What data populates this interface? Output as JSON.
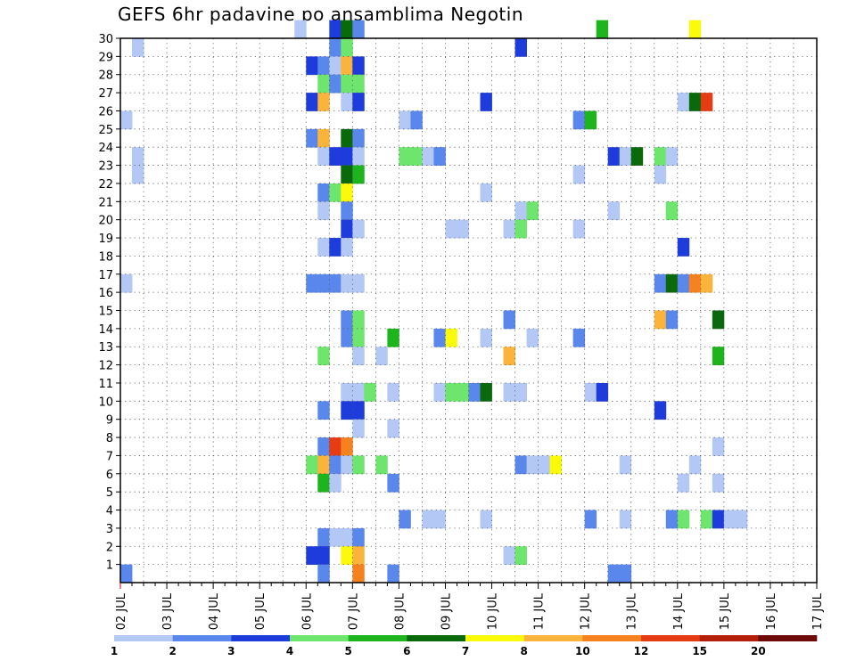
{
  "chart_data": {
    "type": "heatmap",
    "title": "GEFS 6hr padavine po ansamblima Negotin",
    "xlabel": "",
    "ylabel": "",
    "x_tick_labels": [
      "02 JUL",
      "03 JUL",
      "04 JUL",
      "05 JUL",
      "06 JUL",
      "07 JUL",
      "08 JUL",
      "09 JUL",
      "10 JUL",
      "11 JUL",
      "12 JUL",
      "13 JUL",
      "14 JUL",
      "15 JUL",
      "16 JUL",
      "17 JUL"
    ],
    "y_tick_labels": [
      "1",
      "2",
      "3",
      "4",
      "5",
      "6",
      "7",
      "8",
      "9",
      "10",
      "11",
      "12",
      "13",
      "14",
      "15",
      "16",
      "17",
      "18",
      "19",
      "20",
      "21",
      "22",
      "23",
      "24",
      "25",
      "26",
      "27",
      "28",
      "29",
      "30"
    ],
    "x_range_days": [
      0,
      15
    ],
    "y_range_members": [
      0,
      30
    ],
    "grid": true,
    "legend_position": "bottom",
    "colorbar": {
      "labels": [
        "1",
        "2",
        "3",
        "4",
        "5",
        "6",
        "7",
        "8",
        "10",
        "12",
        "15",
        "20"
      ],
      "colors": [
        "#b4c8f5",
        "#5a87eb",
        "#1e3cdc",
        "#6ee66e",
        "#1eb41e",
        "#0a690a",
        "#fafa0a",
        "#fab43c",
        "#f5821e",
        "#e63c14",
        "#b41e0a",
        "#6e0a0a"
      ]
    },
    "cells": [
      {
        "m": 30,
        "s": [
          [
            15,
            1
          ],
          [
            18,
            3
          ],
          [
            19,
            6
          ],
          [
            20,
            2
          ],
          [
            41,
            5
          ],
          [
            49,
            7
          ]
        ]
      },
      {
        "m": 29,
        "s": [
          [
            1,
            1
          ],
          [
            18,
            2
          ],
          [
            19,
            4
          ],
          [
            34,
            3
          ]
        ]
      },
      {
        "m": 28,
        "s": [
          [
            16,
            3
          ],
          [
            17,
            2
          ],
          [
            18,
            1
          ],
          [
            19,
            8
          ],
          [
            20,
            3
          ]
        ]
      },
      {
        "m": 27,
        "s": [
          [
            17,
            4
          ],
          [
            18,
            2
          ],
          [
            19,
            4
          ],
          [
            20,
            4
          ]
        ]
      },
      {
        "m": 26,
        "s": [
          [
            16,
            3
          ],
          [
            17,
            8
          ],
          [
            19,
            1
          ],
          [
            20,
            3
          ],
          [
            31,
            3
          ],
          [
            48,
            1
          ],
          [
            49,
            6
          ],
          [
            50,
            10
          ]
        ]
      },
      {
        "m": 25,
        "s": [
          [
            0,
            1
          ],
          [
            24,
            1
          ],
          [
            25,
            2
          ],
          [
            39,
            2
          ],
          [
            40,
            5
          ]
        ]
      },
      {
        "m": 24,
        "s": [
          [
            16,
            2
          ],
          [
            17,
            8
          ],
          [
            19,
            6
          ],
          [
            20,
            2
          ]
        ]
      },
      {
        "m": 23,
        "s": [
          [
            1,
            1
          ],
          [
            17,
            1
          ],
          [
            18,
            3
          ],
          [
            19,
            3
          ],
          [
            20,
            1
          ],
          [
            24,
            4
          ],
          [
            25,
            4
          ],
          [
            26,
            1
          ],
          [
            27,
            2
          ],
          [
            42,
            3
          ],
          [
            43,
            1
          ],
          [
            44,
            6
          ],
          [
            46,
            4
          ],
          [
            47,
            1
          ]
        ]
      },
      {
        "m": 22,
        "s": [
          [
            1,
            1
          ],
          [
            19,
            6
          ],
          [
            20,
            5
          ],
          [
            39,
            1
          ],
          [
            46,
            1
          ]
        ]
      },
      {
        "m": 21,
        "s": [
          [
            17,
            2
          ],
          [
            18,
            4
          ],
          [
            19,
            7
          ],
          [
            31,
            1
          ]
        ]
      },
      {
        "m": 20,
        "s": [
          [
            17,
            1
          ],
          [
            19,
            2
          ],
          [
            34,
            1
          ],
          [
            35,
            4
          ],
          [
            42,
            1
          ],
          [
            47,
            4
          ]
        ]
      },
      {
        "m": 19,
        "s": [
          [
            19,
            3
          ],
          [
            20,
            1
          ],
          [
            28,
            1
          ],
          [
            29,
            1
          ],
          [
            33,
            1
          ],
          [
            34,
            4
          ],
          [
            39,
            1
          ]
        ]
      },
      {
        "m": 18,
        "s": [
          [
            17,
            1
          ],
          [
            18,
            3
          ],
          [
            19,
            1
          ],
          [
            48,
            3
          ]
        ]
      },
      {
        "m": 16,
        "s": [
          [
            0,
            1
          ],
          [
            16,
            2
          ],
          [
            17,
            2
          ],
          [
            18,
            2
          ],
          [
            19,
            1
          ],
          [
            20,
            1
          ],
          [
            46,
            2
          ],
          [
            47,
            6
          ],
          [
            48,
            2
          ],
          [
            49,
            9
          ],
          [
            50,
            8
          ]
        ]
      },
      {
        "m": 14,
        "s": [
          [
            19,
            2
          ],
          [
            20,
            4
          ],
          [
            33,
            2
          ],
          [
            46,
            8
          ],
          [
            47,
            2
          ],
          [
            51,
            6
          ]
        ]
      },
      {
        "m": 13,
        "s": [
          [
            19,
            2
          ],
          [
            20,
            4
          ],
          [
            23,
            5
          ],
          [
            27,
            2
          ],
          [
            28,
            7
          ],
          [
            31,
            1
          ],
          [
            35,
            1
          ],
          [
            39,
            2
          ]
        ]
      },
      {
        "m": 12,
        "s": [
          [
            17,
            4
          ],
          [
            20,
            1
          ],
          [
            22,
            1
          ],
          [
            33,
            8
          ],
          [
            51,
            5
          ]
        ]
      },
      {
        "m": 10,
        "s": [
          [
            19,
            1
          ],
          [
            20,
            1
          ],
          [
            21,
            4
          ],
          [
            23,
            1
          ],
          [
            27,
            1
          ],
          [
            28,
            4
          ],
          [
            29,
            4
          ],
          [
            30,
            2
          ],
          [
            31,
            6
          ],
          [
            33,
            1
          ],
          [
            34,
            1
          ],
          [
            40,
            1
          ],
          [
            41,
            3
          ]
        ]
      },
      {
        "m": 9,
        "s": [
          [
            17,
            2
          ],
          [
            19,
            3
          ],
          [
            20,
            3
          ],
          [
            46,
            3
          ]
        ]
      },
      {
        "m": 8,
        "s": [
          [
            20,
            1
          ],
          [
            23,
            1
          ]
        ]
      },
      {
        "m": 7,
        "s": [
          [
            17,
            2
          ],
          [
            18,
            10
          ],
          [
            19,
            9
          ],
          [
            51,
            1
          ]
        ]
      },
      {
        "m": 6,
        "s": [
          [
            16,
            4
          ],
          [
            17,
            8
          ],
          [
            18,
            2
          ],
          [
            19,
            1
          ],
          [
            20,
            4
          ],
          [
            22,
            4
          ],
          [
            34,
            2
          ],
          [
            35,
            1
          ],
          [
            36,
            1
          ],
          [
            37,
            7
          ],
          [
            43,
            1
          ],
          [
            49,
            1
          ]
        ]
      },
      {
        "m": 5,
        "s": [
          [
            17,
            5
          ],
          [
            18,
            1
          ],
          [
            23,
            2
          ],
          [
            48,
            1
          ],
          [
            51,
            1
          ]
        ]
      },
      {
        "m": 3,
        "s": [
          [
            24,
            2
          ],
          [
            26,
            1
          ],
          [
            27,
            1
          ],
          [
            31,
            1
          ],
          [
            40,
            2
          ],
          [
            43,
            1
          ],
          [
            47,
            2
          ],
          [
            48,
            4
          ],
          [
            50,
            4
          ],
          [
            51,
            3
          ],
          [
            52,
            1
          ],
          [
            53,
            1
          ]
        ]
      },
      {
        "m": 2,
        "s": [
          [
            17,
            2
          ],
          [
            18,
            1
          ],
          [
            19,
            1
          ],
          [
            20,
            2
          ]
        ]
      },
      {
        "m": 1,
        "s": [
          [
            16,
            3
          ],
          [
            17,
            3
          ],
          [
            19,
            7
          ],
          [
            20,
            8
          ],
          [
            33,
            1
          ],
          [
            34,
            4
          ]
        ]
      },
      {
        "m": 0,
        "s": [
          [
            0,
            2
          ],
          [
            17,
            2
          ],
          [
            20,
            9
          ],
          [
            23,
            2
          ],
          [
            42,
            2
          ],
          [
            43,
            2
          ]
        ]
      }
    ]
  }
}
